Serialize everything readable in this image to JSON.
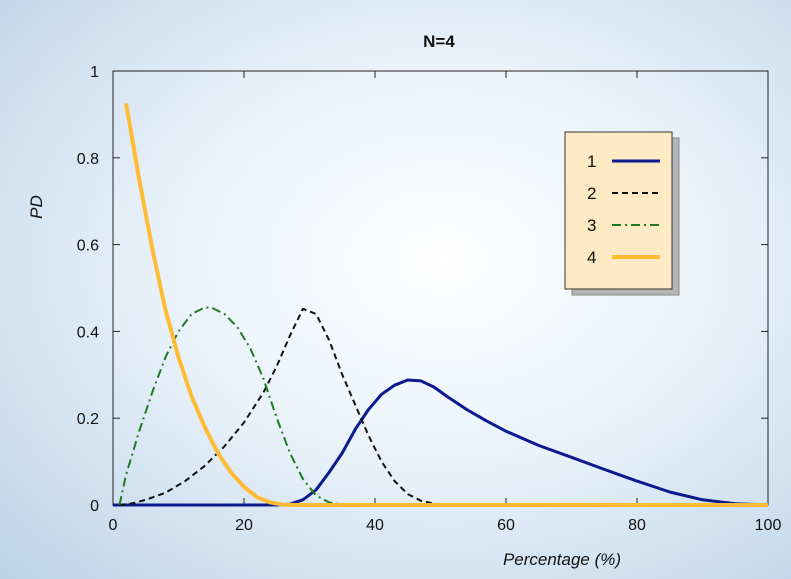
{
  "chart_data": {
    "type": "line",
    "title": "N=4",
    "xlabel": "Percentage (%)",
    "ylabel": "PD",
    "xlim": [
      0,
      100
    ],
    "ylim": [
      0,
      1
    ],
    "xticks": [
      "0",
      "20",
      "40",
      "60",
      "80",
      "100"
    ],
    "yticks": [
      "0",
      "0.2",
      "0.4",
      "0.6",
      "0.8",
      "1"
    ],
    "grid": false,
    "legend_position": "top-right",
    "series": [
      {
        "name": "1",
        "color": "#0b1a8f",
        "dash": "solid",
        "x": [
          0,
          25,
          27,
          29,
          31,
          33,
          35,
          37,
          39,
          41,
          43,
          45,
          47,
          49,
          51,
          54,
          57,
          60,
          65,
          70,
          75,
          80,
          85,
          90,
          95,
          100
        ],
        "y": [
          0,
          0,
          0.002,
          0.012,
          0.035,
          0.075,
          0.12,
          0.175,
          0.22,
          0.255,
          0.276,
          0.288,
          0.286,
          0.272,
          0.25,
          0.22,
          0.194,
          0.17,
          0.137,
          0.11,
          0.082,
          0.055,
          0.03,
          0.012,
          0.003,
          0
        ]
      },
      {
        "name": "2",
        "color": "#111111",
        "dash": "dashed",
        "x": [
          1,
          3,
          5,
          8,
          11,
          14,
          17,
          20,
          23,
          25,
          27,
          29,
          31,
          33,
          35,
          37,
          39,
          41,
          43,
          45,
          47,
          49,
          51,
          55,
          100
        ],
        "y": [
          0,
          0.004,
          0.012,
          0.028,
          0.055,
          0.09,
          0.135,
          0.19,
          0.26,
          0.32,
          0.39,
          0.452,
          0.44,
          0.38,
          0.3,
          0.23,
          0.16,
          0.1,
          0.055,
          0.025,
          0.01,
          0.003,
          0.001,
          0,
          0
        ]
      },
      {
        "name": "3",
        "color": "#1e7a1e",
        "dash": "dashdot",
        "x": [
          1,
          2,
          3,
          4,
          6,
          8,
          10,
          12,
          14,
          15,
          17,
          19,
          21,
          23,
          25,
          27,
          29,
          31,
          33,
          35,
          37,
          100
        ],
        "y": [
          0,
          0.07,
          0.12,
          0.17,
          0.26,
          0.34,
          0.4,
          0.44,
          0.455,
          0.455,
          0.44,
          0.41,
          0.36,
          0.29,
          0.2,
          0.12,
          0.06,
          0.022,
          0.006,
          0.001,
          0,
          0
        ]
      },
      {
        "name": "4",
        "color": "#ffbb33",
        "dash": "solid",
        "x": [
          2,
          4,
          6,
          8,
          10,
          12,
          14,
          16,
          18,
          20,
          22,
          24,
          26,
          28,
          100
        ],
        "y": [
          0.925,
          0.75,
          0.59,
          0.45,
          0.34,
          0.25,
          0.18,
          0.12,
          0.075,
          0.042,
          0.018,
          0.006,
          0.001,
          0,
          0
        ]
      }
    ]
  }
}
